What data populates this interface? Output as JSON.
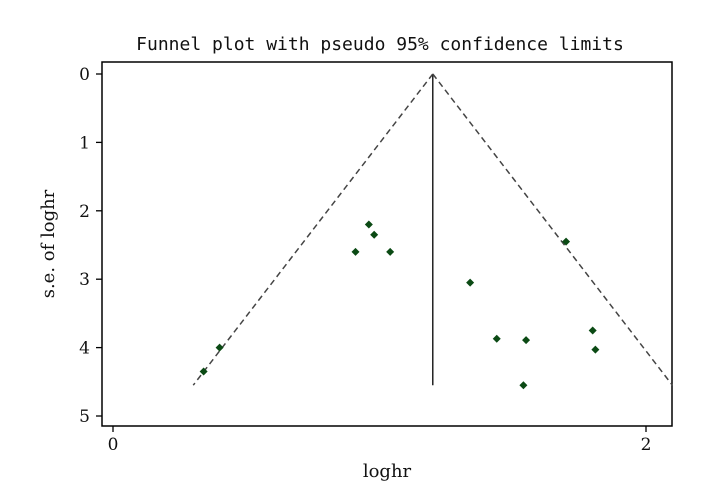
{
  "chart_data": {
    "type": "scatter",
    "title": "Funnel plot with pseudo 95% confidence limits",
    "xlabel": "loghr",
    "ylabel": "s.e. of loghr",
    "xlim": [
      -0.02,
      2.1
    ],
    "ylim": [
      0,
      5.15
    ],
    "y_inverted": true,
    "x_ticks": [
      0,
      2
    ],
    "y_ticks": [
      0,
      1,
      2,
      3,
      4,
      5
    ],
    "grid": false,
    "pooled_estimate": 1.2,
    "confidence_level": 0.95,
    "se_max": 4.55,
    "points": [
      {
        "x": 0.34,
        "y": 4.35
      },
      {
        "x": 0.4,
        "y": 4.0
      },
      {
        "x": 0.91,
        "y": 2.6
      },
      {
        "x": 0.96,
        "y": 2.2
      },
      {
        "x": 0.98,
        "y": 2.35
      },
      {
        "x": 1.04,
        "y": 2.6
      },
      {
        "x": 1.34,
        "y": 3.05
      },
      {
        "x": 1.44,
        "y": 3.87
      },
      {
        "x": 1.54,
        "y": 4.55
      },
      {
        "x": 1.55,
        "y": 3.89
      },
      {
        "x": 1.7,
        "y": 2.45
      },
      {
        "x": 1.8,
        "y": 3.75
      },
      {
        "x": 1.81,
        "y": 4.03
      }
    ],
    "colors": {
      "marker": "#0b4a14",
      "funnel": "#444444",
      "axis": "#000000"
    }
  }
}
